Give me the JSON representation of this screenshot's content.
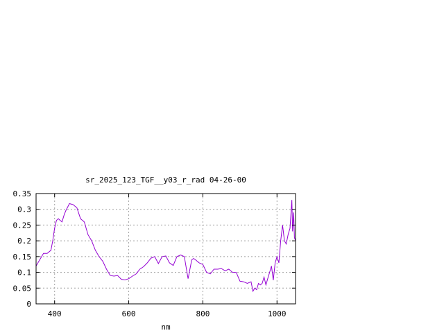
{
  "chart_data": {
    "type": "line",
    "title": "sr_2025_123_TGF__y03_r_rad 04-26-00",
    "xlabel": "nm",
    "ylabel": "",
    "xlim": [
      350,
      1050
    ],
    "ylim": [
      0,
      0.35
    ],
    "xticks": [
      400,
      600,
      800,
      1000
    ],
    "xtick_labels": [
      "400",
      "600",
      "800",
      "1000"
    ],
    "yticks": [
      0,
      0.05,
      0.1,
      0.15,
      0.2,
      0.25,
      0.3,
      0.35
    ],
    "ytick_labels": [
      "0",
      "0.05",
      "0.1",
      "0.15",
      "0.2",
      "0.25",
      "0.3",
      "0.35"
    ],
    "grid": true,
    "line_color": "#9400d3",
    "series": [
      {
        "x": [
          350,
          360,
          370,
          380,
          390,
          395,
          400,
          405,
          410,
          415,
          420,
          425,
          430,
          440,
          450,
          455,
          460,
          470,
          480,
          490,
          500,
          510,
          520,
          530,
          540,
          550,
          560,
          570,
          580,
          590,
          600,
          610,
          620,
          630,
          640,
          650,
          660,
          670,
          680,
          690,
          700,
          710,
          720,
          730,
          740,
          750,
          760,
          770,
          775,
          780,
          790,
          800,
          810,
          820,
          830,
          840,
          850,
          860,
          870,
          880,
          890,
          900,
          910,
          920,
          930,
          935,
          940,
          945,
          950,
          955,
          960,
          965,
          970,
          975,
          980,
          985,
          990,
          995,
          1000,
          1005,
          1010,
          1015,
          1020,
          1025,
          1030,
          1035,
          1040,
          1042,
          1045,
          1047,
          1050
        ],
        "y": [
          0.12,
          0.14,
          0.16,
          0.16,
          0.17,
          0.2,
          0.24,
          0.265,
          0.27,
          0.265,
          0.26,
          0.28,
          0.295,
          0.318,
          0.315,
          0.31,
          0.305,
          0.27,
          0.26,
          0.22,
          0.2,
          0.17,
          0.15,
          0.135,
          0.11,
          0.09,
          0.088,
          0.09,
          0.078,
          0.076,
          0.08,
          0.088,
          0.095,
          0.11,
          0.118,
          0.13,
          0.145,
          0.15,
          0.128,
          0.15,
          0.152,
          0.13,
          0.122,
          0.15,
          0.155,
          0.15,
          0.08,
          0.14,
          0.144,
          0.14,
          0.13,
          0.125,
          0.1,
          0.095,
          0.11,
          0.11,
          0.112,
          0.105,
          0.11,
          0.1,
          0.1,
          0.072,
          0.07,
          0.065,
          0.07,
          0.04,
          0.05,
          0.045,
          0.065,
          0.06,
          0.065,
          0.085,
          0.06,
          0.08,
          0.1,
          0.12,
          0.075,
          0.13,
          0.15,
          0.13,
          0.2,
          0.25,
          0.2,
          0.19,
          0.22,
          0.24,
          0.33,
          0.23,
          0.29,
          0.21,
          0.2
        ]
      }
    ]
  }
}
